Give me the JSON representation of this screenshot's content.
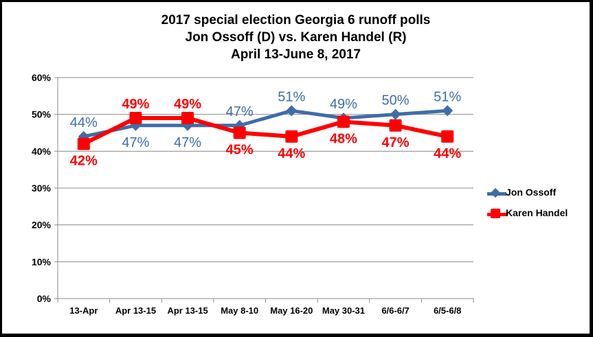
{
  "chart_data": {
    "type": "line",
    "title": "2017 special election Georgia 6 runoff polls",
    "subtitle_lines": [
      "Jon Ossoff (D) vs. Karen Handel (R)",
      "April 13-June 8, 2017"
    ],
    "categories": [
      "13-Apr",
      "Apr 13-15",
      "Apr 13-15",
      "May 8-10",
      "May 16-20",
      "May 30-31",
      "6/6-6/7",
      "6/5-6/8"
    ],
    "series": [
      {
        "name": "Jon Ossoff",
        "values": [
          44,
          47,
          47,
          47,
          51,
          49,
          50,
          51
        ],
        "labels": [
          "44%",
          "47%",
          "47%",
          "47%",
          "51%",
          "49%",
          "50%",
          "51%"
        ],
        "label_side": [
          "above",
          "below",
          "below",
          "above",
          "above",
          "above",
          "above",
          "above"
        ],
        "color": "#3e6da8",
        "marker": "diamond"
      },
      {
        "name": "Karen Handel",
        "values": [
          42,
          49,
          49,
          45,
          44,
          48,
          47,
          44
        ],
        "labels": [
          "42%",
          "49%",
          "49%",
          "45%",
          "44%",
          "48%",
          "47%",
          "44%"
        ],
        "label_side": [
          "below",
          "above",
          "above",
          "below",
          "below",
          "below",
          "below",
          "below"
        ],
        "color": "#ff0000",
        "marker": "square"
      }
    ],
    "ylim": [
      0,
      60
    ],
    "yticks": [
      0,
      10,
      20,
      30,
      40,
      50,
      60
    ],
    "ytick_labels": [
      "0%",
      "10%",
      "20%",
      "30%",
      "40%",
      "50%",
      "60%"
    ],
    "grid": true,
    "legend_position": "right",
    "xlabel": "",
    "ylabel": ""
  }
}
